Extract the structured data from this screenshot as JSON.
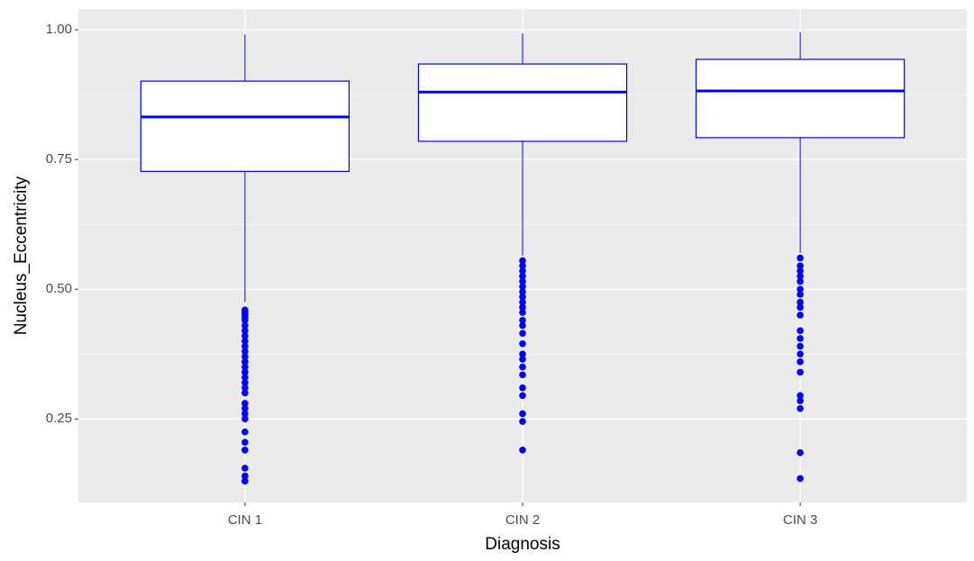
{
  "chart_data": {
    "type": "box",
    "x_label": "Diagnosis",
    "y_label": "Nucleus_Eccentricity",
    "categories": [
      "CIN 1",
      "CIN 2",
      "CIN 3"
    ],
    "color": "#0000ff",
    "boxes": [
      {
        "min": 0.475,
        "q1": 0.727,
        "median": 0.832,
        "q3": 0.901,
        "max": 0.991,
        "outliers": [
          0.46,
          0.455,
          0.45,
          0.445,
          0.44,
          0.43,
          0.42,
          0.41,
          0.4,
          0.39,
          0.38,
          0.37,
          0.36,
          0.35,
          0.34,
          0.33,
          0.32,
          0.31,
          0.3,
          0.28,
          0.27,
          0.26,
          0.25,
          0.225,
          0.205,
          0.19,
          0.155,
          0.14,
          0.13
        ]
      },
      {
        "min": 0.565,
        "q1": 0.785,
        "median": 0.88,
        "q3": 0.934,
        "max": 0.993,
        "outliers": [
          0.555,
          0.545,
          0.535,
          0.525,
          0.515,
          0.505,
          0.495,
          0.485,
          0.475,
          0.465,
          0.455,
          0.44,
          0.43,
          0.415,
          0.395,
          0.375,
          0.365,
          0.35,
          0.335,
          0.31,
          0.295,
          0.26,
          0.245,
          0.19
        ]
      },
      {
        "min": 0.57,
        "q1": 0.792,
        "median": 0.882,
        "q3": 0.943,
        "max": 0.995,
        "outliers": [
          0.56,
          0.545,
          0.535,
          0.525,
          0.515,
          0.5,
          0.49,
          0.475,
          0.465,
          0.45,
          0.42,
          0.405,
          0.39,
          0.375,
          0.36,
          0.34,
          0.295,
          0.285,
          0.27,
          0.185,
          0.135
        ]
      }
    ],
    "ylim": [
      0.089,
      1.04
    ],
    "yticks": [
      0.25,
      {
        "value": 0.5,
        "label": "0.50"
      },
      0.75,
      {
        "value": 1,
        "label": "1.00"
      }
    ],
    "grid": true
  }
}
